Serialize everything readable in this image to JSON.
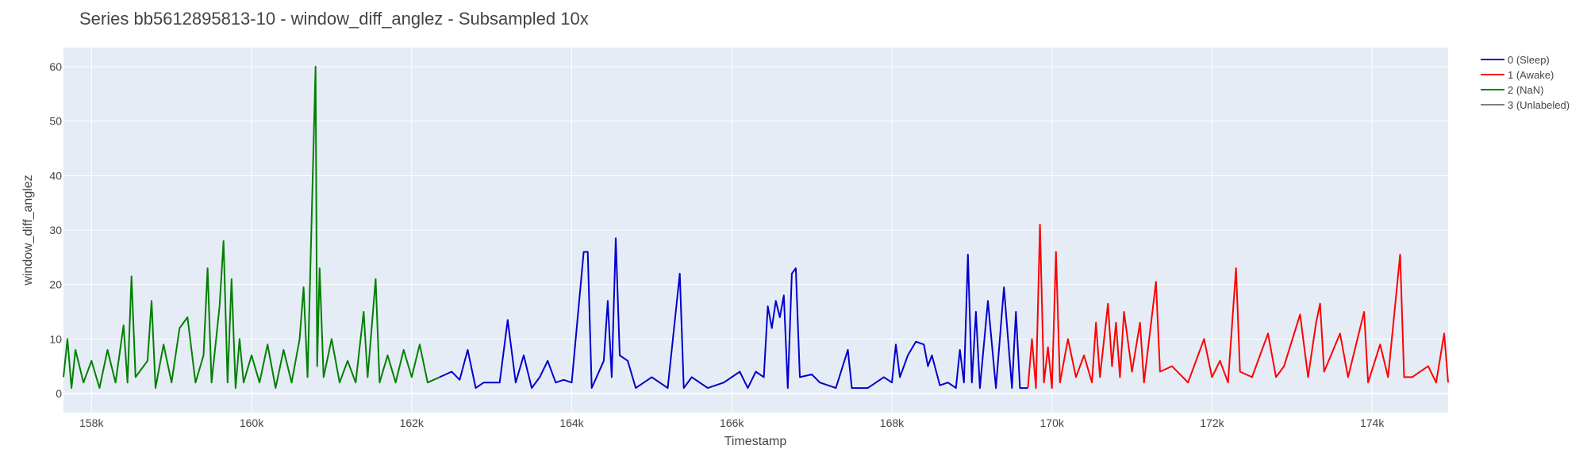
{
  "chart_data": {
    "type": "line",
    "title": "Series bb5612895813-10 - window_diff_anglez - Subsampled 10x",
    "xlabel": "Timestamp",
    "ylabel": "window_diff_anglez",
    "xlim": [
      157650,
      174950
    ],
    "ylim": [
      -3.5,
      63.5
    ],
    "x_ticks": [
      158000,
      160000,
      162000,
      164000,
      166000,
      168000,
      170000,
      172000,
      174000
    ],
    "x_tick_labels": [
      "158k",
      "160k",
      "162k",
      "164k",
      "166k",
      "168k",
      "170k",
      "172k",
      "174k"
    ],
    "y_ticks": [
      0,
      10,
      20,
      30,
      40,
      50,
      60
    ],
    "y_tick_labels": [
      "0",
      "10",
      "20",
      "30",
      "40",
      "50",
      "60"
    ],
    "grid": true,
    "legend_position": "top-right",
    "series": [
      {
        "name": "0 (Sleep)",
        "color": "#0000cc",
        "points": [
          [
            162350,
            3
          ],
          [
            162500,
            4
          ],
          [
            162600,
            2.5
          ],
          [
            162700,
            8
          ],
          [
            162800,
            1
          ],
          [
            162900,
            2
          ],
          [
            163100,
            2
          ],
          [
            163200,
            13.5
          ],
          [
            163300,
            2
          ],
          [
            163400,
            7
          ],
          [
            163500,
            1
          ],
          [
            163600,
            3
          ],
          [
            163700,
            6
          ],
          [
            163800,
            2
          ],
          [
            163900,
            2.5
          ],
          [
            164000,
            2
          ],
          [
            164150,
            26
          ],
          [
            164200,
            26
          ],
          [
            164250,
            1
          ],
          [
            164400,
            6
          ],
          [
            164450,
            17
          ],
          [
            164500,
            3
          ],
          [
            164550,
            28.5
          ],
          [
            164600,
            7
          ],
          [
            164700,
            6
          ],
          [
            164800,
            1
          ],
          [
            165000,
            3
          ],
          [
            165200,
            1
          ],
          [
            165350,
            22
          ],
          [
            165400,
            1
          ],
          [
            165500,
            3
          ],
          [
            165700,
            1
          ],
          [
            165900,
            2
          ],
          [
            166100,
            4
          ],
          [
            166200,
            1
          ],
          [
            166300,
            4
          ],
          [
            166400,
            3
          ],
          [
            166450,
            16
          ],
          [
            166500,
            12
          ],
          [
            166550,
            17
          ],
          [
            166600,
            14
          ],
          [
            166650,
            18
          ],
          [
            166700,
            1
          ],
          [
            166750,
            22
          ],
          [
            166800,
            23
          ],
          [
            166850,
            3
          ],
          [
            167000,
            3.5
          ],
          [
            167100,
            2
          ],
          [
            167300,
            1
          ],
          [
            167450,
            8
          ],
          [
            167500,
            1
          ],
          [
            167700,
            1
          ],
          [
            167900,
            3
          ],
          [
            168000,
            2
          ],
          [
            168050,
            9
          ],
          [
            168100,
            3
          ],
          [
            168200,
            7
          ],
          [
            168300,
            9.5
          ],
          [
            168400,
            9
          ],
          [
            168450,
            5
          ],
          [
            168500,
            7
          ],
          [
            168600,
            1.5
          ],
          [
            168700,
            2
          ],
          [
            168800,
            1
          ],
          [
            168850,
            8
          ],
          [
            168900,
            2
          ],
          [
            168950,
            25.5
          ],
          [
            169000,
            2
          ],
          [
            169050,
            15
          ],
          [
            169100,
            1
          ],
          [
            169200,
            17
          ],
          [
            169300,
            1
          ],
          [
            169400,
            19.5
          ],
          [
            169500,
            1
          ],
          [
            169550,
            15
          ],
          [
            169600,
            1
          ],
          [
            169700,
            1
          ]
        ]
      },
      {
        "name": "1 (Awake)",
        "color": "#ff0000",
        "points": [
          [
            169700,
            1
          ],
          [
            169750,
            10
          ],
          [
            169800,
            1
          ],
          [
            169850,
            31
          ],
          [
            169900,
            2
          ],
          [
            169950,
            8.5
          ],
          [
            170000,
            1
          ],
          [
            170050,
            26
          ],
          [
            170100,
            2
          ],
          [
            170200,
            10
          ],
          [
            170300,
            3
          ],
          [
            170400,
            7
          ],
          [
            170500,
            2
          ],
          [
            170550,
            13
          ],
          [
            170600,
            3
          ],
          [
            170700,
            16.5
          ],
          [
            170750,
            5
          ],
          [
            170800,
            13
          ],
          [
            170850,
            3
          ],
          [
            170900,
            15
          ],
          [
            171000,
            4
          ],
          [
            171100,
            13
          ],
          [
            171150,
            2
          ],
          [
            171300,
            20.5
          ],
          [
            171350,
            4
          ],
          [
            171500,
            5
          ],
          [
            171700,
            2
          ],
          [
            171900,
            10
          ],
          [
            172000,
            3
          ],
          [
            172100,
            6
          ],
          [
            172200,
            2
          ],
          [
            172300,
            23
          ],
          [
            172350,
            4
          ],
          [
            172500,
            3
          ],
          [
            172700,
            11
          ],
          [
            172800,
            3
          ],
          [
            172900,
            5
          ],
          [
            173100,
            14.5
          ],
          [
            173200,
            3
          ],
          [
            173300,
            13
          ],
          [
            173350,
            16.5
          ],
          [
            173400,
            4
          ],
          [
            173600,
            11
          ],
          [
            173700,
            3
          ],
          [
            173900,
            15
          ],
          [
            173950,
            2
          ],
          [
            174100,
            9
          ],
          [
            174200,
            3
          ],
          [
            174350,
            25.5
          ],
          [
            174400,
            3
          ],
          [
            174500,
            3
          ],
          [
            174700,
            5
          ],
          [
            174800,
            2
          ],
          [
            174900,
            11
          ],
          [
            174950,
            2
          ]
        ]
      },
      {
        "name": "2 (NaN)",
        "color": "#008000",
        "points": [
          [
            157650,
            3
          ],
          [
            157700,
            10
          ],
          [
            157750,
            1
          ],
          [
            157800,
            8
          ],
          [
            157900,
            2
          ],
          [
            158000,
            6
          ],
          [
            158100,
            1
          ],
          [
            158200,
            8
          ],
          [
            158300,
            2
          ],
          [
            158400,
            12.5
          ],
          [
            158450,
            2
          ],
          [
            158500,
            21.5
          ],
          [
            158550,
            3
          ],
          [
            158700,
            6
          ],
          [
            158750,
            17
          ],
          [
            158800,
            1
          ],
          [
            158900,
            9
          ],
          [
            159000,
            2
          ],
          [
            159100,
            12
          ],
          [
            159200,
            14
          ],
          [
            159300,
            2
          ],
          [
            159400,
            7
          ],
          [
            159450,
            23
          ],
          [
            159500,
            2
          ],
          [
            159600,
            16
          ],
          [
            159650,
            28
          ],
          [
            159700,
            2
          ],
          [
            159750,
            21
          ],
          [
            159800,
            1
          ],
          [
            159850,
            10
          ],
          [
            159900,
            2
          ],
          [
            160000,
            7
          ],
          [
            160100,
            2
          ],
          [
            160200,
            9
          ],
          [
            160300,
            1
          ],
          [
            160400,
            8
          ],
          [
            160500,
            2
          ],
          [
            160600,
            10
          ],
          [
            160650,
            19.5
          ],
          [
            160700,
            3
          ],
          [
            160800,
            60
          ],
          [
            160820,
            5
          ],
          [
            160850,
            23
          ],
          [
            160900,
            3
          ],
          [
            161000,
            10
          ],
          [
            161100,
            2
          ],
          [
            161200,
            6
          ],
          [
            161300,
            2
          ],
          [
            161400,
            15
          ],
          [
            161450,
            3
          ],
          [
            161550,
            21
          ],
          [
            161600,
            2
          ],
          [
            161700,
            7
          ],
          [
            161800,
            2
          ],
          [
            161900,
            8
          ],
          [
            162000,
            3
          ],
          [
            162100,
            9
          ],
          [
            162200,
            2
          ],
          [
            162350,
            3
          ]
        ]
      },
      {
        "name": "3 (Unlabeled)",
        "color": "#808080",
        "points": []
      }
    ]
  }
}
